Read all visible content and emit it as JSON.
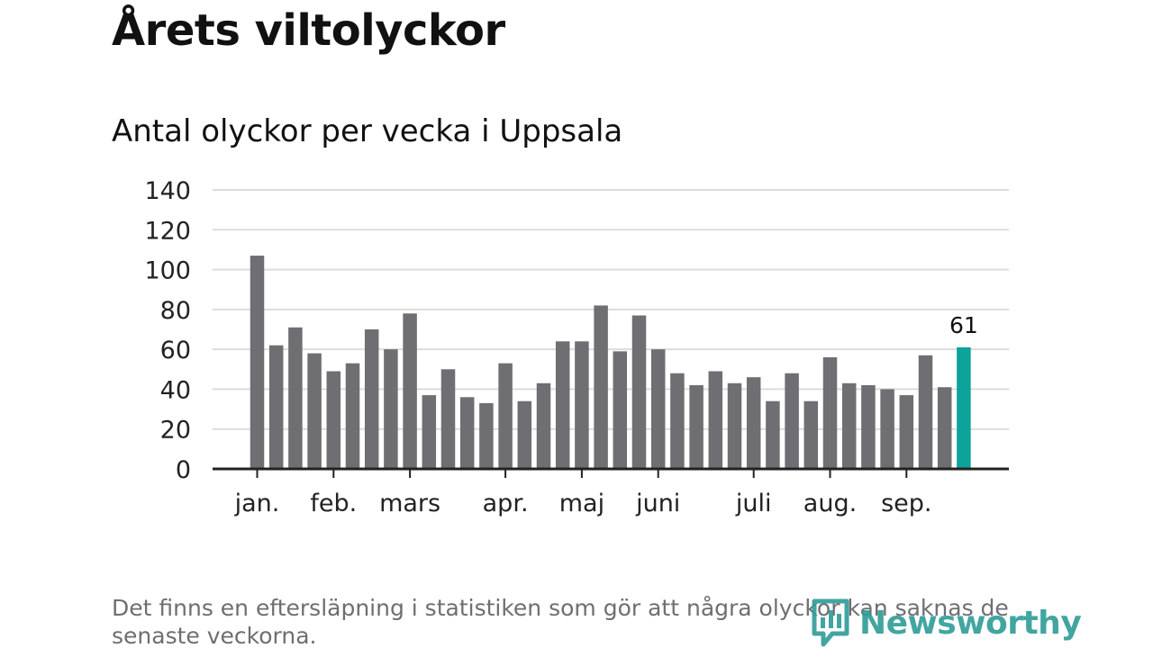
{
  "title": "Årets viltolyckor",
  "subtitle": "Antal olyckor per vecka i Uppsala",
  "footnote": "Det finns en eftersläpning i statistiken som gör att några olyckor kan saknas de senaste veckorna.",
  "brand": {
    "name": "Newsworthy",
    "color": "#2e9c96",
    "icon": "newsworthy-logo-icon"
  },
  "colors": {
    "bar": "#6f6e73",
    "highlight": "#0da29a",
    "grid": "#dcdcdc",
    "axis": "#222222",
    "text": "#222222"
  },
  "chart_data": {
    "type": "bar",
    "title": "Antal olyckor per vecka i Uppsala",
    "xlabel": "",
    "ylabel": "",
    "ylim": [
      0,
      140
    ],
    "yticks": [
      0,
      20,
      40,
      60,
      80,
      100,
      120,
      140
    ],
    "weeks": [
      1,
      2,
      3,
      4,
      5,
      6,
      7,
      8,
      9,
      10,
      11,
      12,
      13,
      14,
      15,
      16,
      17,
      18,
      19,
      20,
      21,
      22,
      23,
      24,
      25,
      26,
      27,
      28,
      29,
      30,
      31,
      32,
      33,
      34,
      35,
      36,
      37,
      38
    ],
    "values": [
      107,
      62,
      71,
      58,
      49,
      53,
      70,
      60,
      78,
      37,
      50,
      36,
      33,
      53,
      34,
      43,
      64,
      64,
      82,
      59,
      77,
      60,
      48,
      42,
      49,
      43,
      46,
      34,
      48,
      34,
      56,
      43,
      42,
      40,
      37,
      57,
      41,
      61
    ],
    "highlight_index": 37,
    "highlight_label": "61",
    "month_labels": [
      {
        "label": "jan.",
        "week": 1
      },
      {
        "label": "feb.",
        "week": 5
      },
      {
        "label": "mars",
        "week": 9
      },
      {
        "label": "apr.",
        "week": 14
      },
      {
        "label": "maj",
        "week": 18
      },
      {
        "label": "juni",
        "week": 22
      },
      {
        "label": "juli",
        "week": 27
      },
      {
        "label": "aug.",
        "week": 31
      },
      {
        "label": "sep.",
        "week": 35
      }
    ],
    "grid": true,
    "legend": "none"
  }
}
